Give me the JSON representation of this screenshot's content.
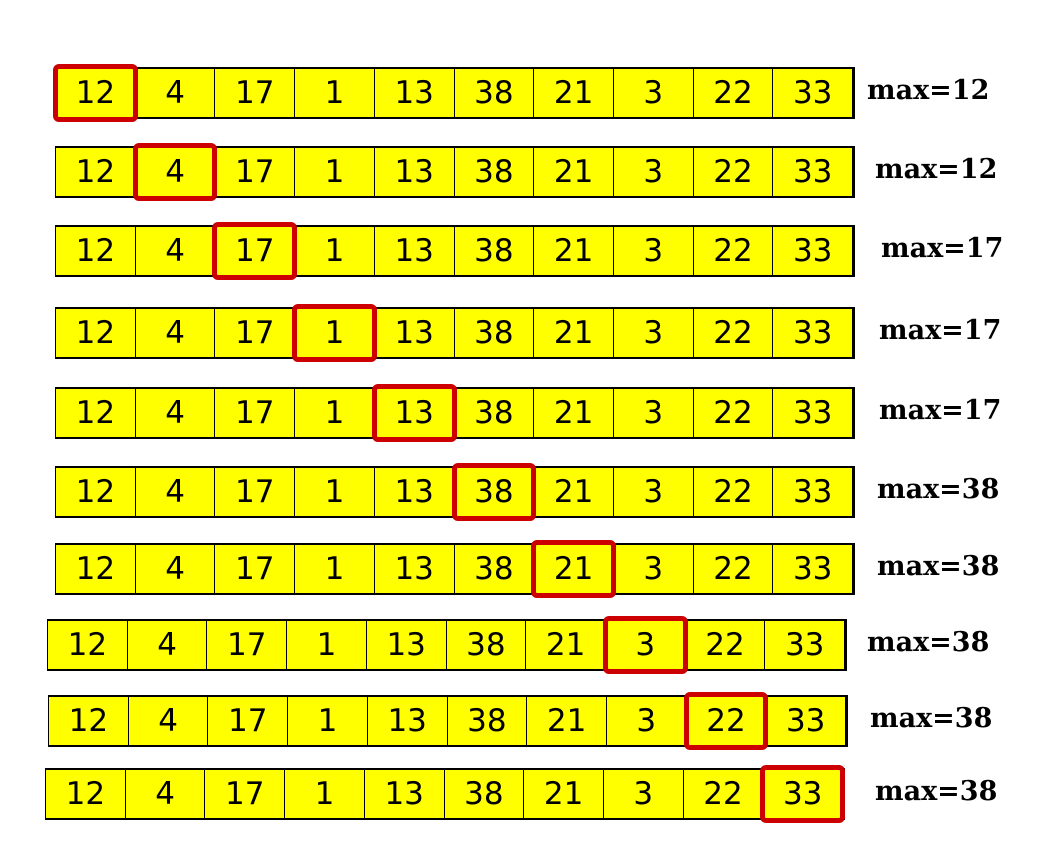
{
  "rows": [
    {
      "values": [
        "12",
        "4",
        "17",
        "1",
        "13",
        "38",
        "21",
        "3",
        "22",
        "33"
      ],
      "current_index": 0,
      "max_label": "max=12"
    },
    {
      "values": [
        "12",
        "4",
        "17",
        "1",
        "13",
        "38",
        "21",
        "3",
        "22",
        "33"
      ],
      "current_index": 1,
      "max_label": "max=12"
    },
    {
      "values": [
        "12",
        "4",
        "17",
        "1",
        "13",
        "38",
        "21",
        "3",
        "22",
        "33"
      ],
      "current_index": 2,
      "max_label": "max=17"
    },
    {
      "values": [
        "12",
        "4",
        "17",
        "1",
        "13",
        "38",
        "21",
        "3",
        "22",
        "33"
      ],
      "current_index": 3,
      "max_label": "max=17"
    },
    {
      "values": [
        "12",
        "4",
        "17",
        "1",
        "13",
        "38",
        "21",
        "3",
        "22",
        "33"
      ],
      "current_index": 4,
      "max_label": "max=17"
    },
    {
      "values": [
        "12",
        "4",
        "17",
        "1",
        "13",
        "38",
        "21",
        "3",
        "22",
        "33"
      ],
      "current_index": 5,
      "max_label": "max=38"
    },
    {
      "values": [
        "12",
        "4",
        "17",
        "1",
        "13",
        "38",
        "21",
        "3",
        "22",
        "33"
      ],
      "current_index": 6,
      "max_label": "max=38"
    },
    {
      "values": [
        "12",
        "4",
        "17",
        "1",
        "13",
        "38",
        "21",
        "3",
        "22",
        "33"
      ],
      "current_index": 7,
      "max_label": "max=38"
    },
    {
      "values": [
        "12",
        "4",
        "17",
        "1",
        "13",
        "38",
        "21",
        "3",
        "22",
        "33"
      ],
      "current_index": 8,
      "max_label": "max=38"
    },
    {
      "values": [
        "12",
        "4",
        "17",
        "1",
        "13",
        "38",
        "21",
        "3",
        "22",
        "33"
      ],
      "current_index": 9,
      "max_label": "max=38"
    }
  ],
  "colors": {
    "cell_fill": "#ffff00",
    "highlight": "#cc0000",
    "border": "#000000"
  }
}
